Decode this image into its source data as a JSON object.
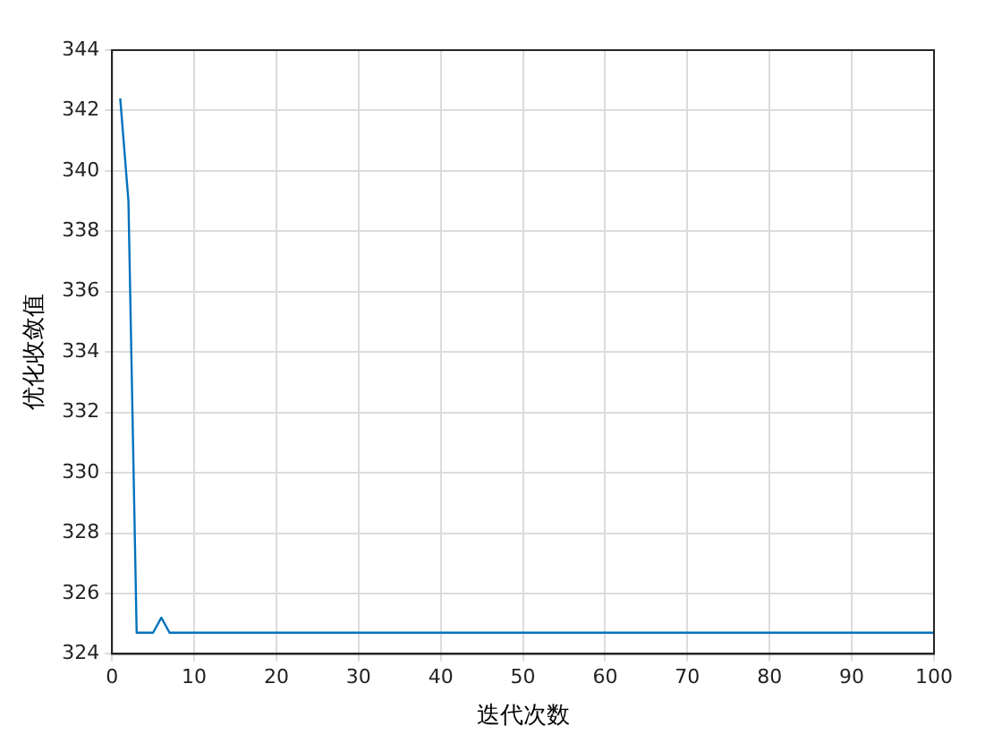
{
  "chart_data": {
    "type": "line",
    "xlabel": "迭代次数",
    "ylabel": "优化收敛值",
    "series": [
      {
        "color": "#0072bd",
        "x": [
          1,
          2,
          3,
          4,
          5,
          6,
          7,
          8,
          100
        ],
        "values": [
          342.4,
          339.0,
          324.7,
          324.7,
          324.7,
          325.2,
          324.7,
          324.7,
          324.7
        ]
      }
    ],
    "xlim": [
      0,
      100
    ],
    "xticks": [
      0,
      10,
      20,
      30,
      40,
      50,
      60,
      70,
      80,
      90,
      100
    ],
    "ylim": [
      324,
      344
    ],
    "yticks": [
      324,
      326,
      328,
      330,
      332,
      334,
      336,
      338,
      340,
      342,
      344
    ],
    "grid": true,
    "legend": false,
    "marker": "none",
    "line_style": "solid"
  }
}
